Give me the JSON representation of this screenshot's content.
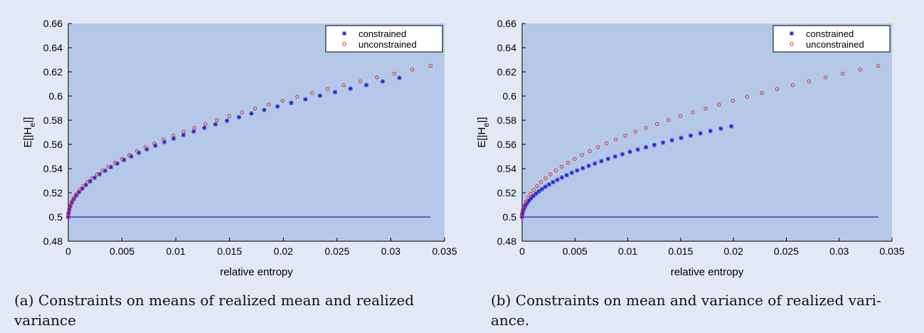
{
  "panels": [
    {
      "caption_line1": "(a) Constraints on means of realized mean and realized",
      "caption_line2": "variance"
    },
    {
      "caption_line1": "(b) Constraints on mean and variance of realized vari-",
      "caption_line2": "ance."
    }
  ],
  "chart_data": [
    {
      "type": "scatter",
      "xlabel": "relative entropy",
      "ylabel_main": "E[|H",
      "ylabel_sub": "e",
      "ylabel_end": "|]",
      "xlim": [
        0,
        0.035
      ],
      "ylim": [
        0.48,
        0.66
      ],
      "xticks": [
        "0",
        "0.005",
        "0.01",
        "0.015",
        "0.02",
        "0.025",
        "0.03",
        "0.035"
      ],
      "yticks": [
        "0.48",
        "0.5",
        "0.52",
        "0.54",
        "0.56",
        "0.58",
        "0.6",
        "0.62",
        "0.64",
        "0.66"
      ],
      "grid": false,
      "legend_position": "top-right",
      "plot_background": "#b4c9e8",
      "reference_line": {
        "y": 0.5,
        "x_from": 0,
        "x_to": 0.0337,
        "color": "#1f1fd6"
      },
      "series": [
        {
          "name": "constrained",
          "marker": "asterisk",
          "color": "#1f1fd6",
          "x_end": 0.0308,
          "y_end": 0.615,
          "n_points": 40
        },
        {
          "name": "unconstrained",
          "marker": "circle",
          "color": "#e8262b",
          "x_end": 0.0337,
          "y_end": 0.625,
          "n_points": 40
        }
      ]
    },
    {
      "type": "scatter",
      "xlabel": "relative entropy",
      "ylabel_main": "E[|H",
      "ylabel_sub": "e",
      "ylabel_end": "|]",
      "xlim": [
        0,
        0.035
      ],
      "ylim": [
        0.48,
        0.66
      ],
      "xticks": [
        "0",
        "0.005",
        "0.01",
        "0.015",
        "0.02",
        "0.025",
        "0.03",
        "0.035"
      ],
      "yticks": [
        "0.48",
        "0.5",
        "0.52",
        "0.54",
        "0.56",
        "0.58",
        "0.6",
        "0.62",
        "0.64",
        "0.66"
      ],
      "grid": false,
      "legend_position": "top-right",
      "plot_background": "#b4c9e8",
      "reference_line": {
        "y": 0.5,
        "x_from": 0,
        "x_to": 0.0337,
        "color": "#1f1fd6"
      },
      "series": [
        {
          "name": "constrained",
          "marker": "asterisk",
          "color": "#1f1fd6",
          "x_end": 0.0198,
          "y_end": 0.575,
          "n_points": 40
        },
        {
          "name": "unconstrained",
          "marker": "circle",
          "color": "#e8262b",
          "x_end": 0.0337,
          "y_end": 0.625,
          "n_points": 40
        }
      ]
    }
  ]
}
